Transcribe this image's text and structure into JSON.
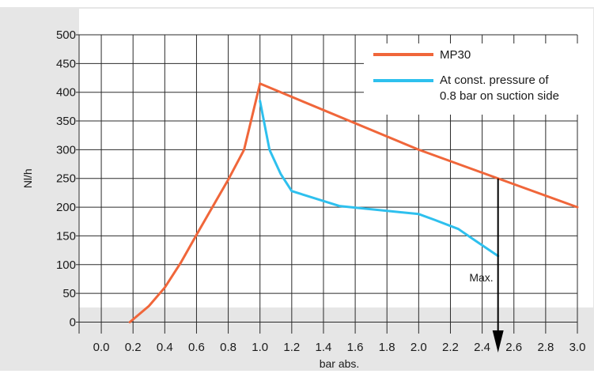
{
  "chart_data": {
    "type": "line",
    "title": "",
    "xlabel": "bar abs.",
    "ylabel": "Nl/h",
    "xlim": [
      -0.1,
      3.0
    ],
    "ylim": [
      -20,
      500
    ],
    "x_ticks": [
      0.0,
      0.2,
      0.4,
      0.6,
      0.8,
      1.0,
      1.2,
      1.4,
      1.6,
      1.8,
      2.0,
      2.2,
      2.4,
      2.6,
      2.8,
      3.0
    ],
    "x_tick_labels": [
      "0.0",
      "0.2",
      "0.4",
      "0.6",
      "0.8",
      "1.0",
      "1.2",
      "1.4",
      "1.6",
      "1.8",
      "2.0",
      "2.2",
      "2.4",
      "2.6",
      "2.8",
      "3.0"
    ],
    "y_ticks": [
      0,
      50,
      100,
      150,
      200,
      250,
      300,
      350,
      400,
      450,
      500
    ],
    "y_tick_labels": [
      "0",
      "50",
      "100",
      "150",
      "200",
      "250",
      "300",
      "350",
      "400",
      "450",
      "500"
    ],
    "grid": true,
    "legend_position": "top-right",
    "series": [
      {
        "name": "MP30",
        "color": "#f0663a",
        "points": [
          [
            0.18,
            0
          ],
          [
            0.3,
            28
          ],
          [
            0.4,
            60
          ],
          [
            0.5,
            103
          ],
          [
            0.6,
            152
          ],
          [
            0.7,
            200
          ],
          [
            0.8,
            248
          ],
          [
            0.9,
            300
          ],
          [
            1.0,
            415
          ],
          [
            2.0,
            300
          ],
          [
            3.0,
            200
          ]
        ]
      },
      {
        "name_lines": [
          "At const. pressure of",
          "0.8 bar on suction side"
        ],
        "color": "#2ec0ee",
        "points": [
          [
            1.0,
            385
          ],
          [
            1.06,
            300
          ],
          [
            1.13,
            258
          ],
          [
            1.2,
            228
          ],
          [
            1.5,
            202
          ],
          [
            2.0,
            188
          ],
          [
            2.1,
            178
          ],
          [
            2.25,
            162
          ],
          [
            2.35,
            143
          ],
          [
            2.5,
            115
          ]
        ]
      }
    ],
    "annotation": {
      "text": "Max.",
      "arrow_x": 2.5,
      "arrow_from_y": 250,
      "arrow_to_y": -20
    }
  },
  "colors": {
    "band": "#e6e6e6",
    "grid": "#2b2b2b",
    "text": "#1a1a1a"
  }
}
